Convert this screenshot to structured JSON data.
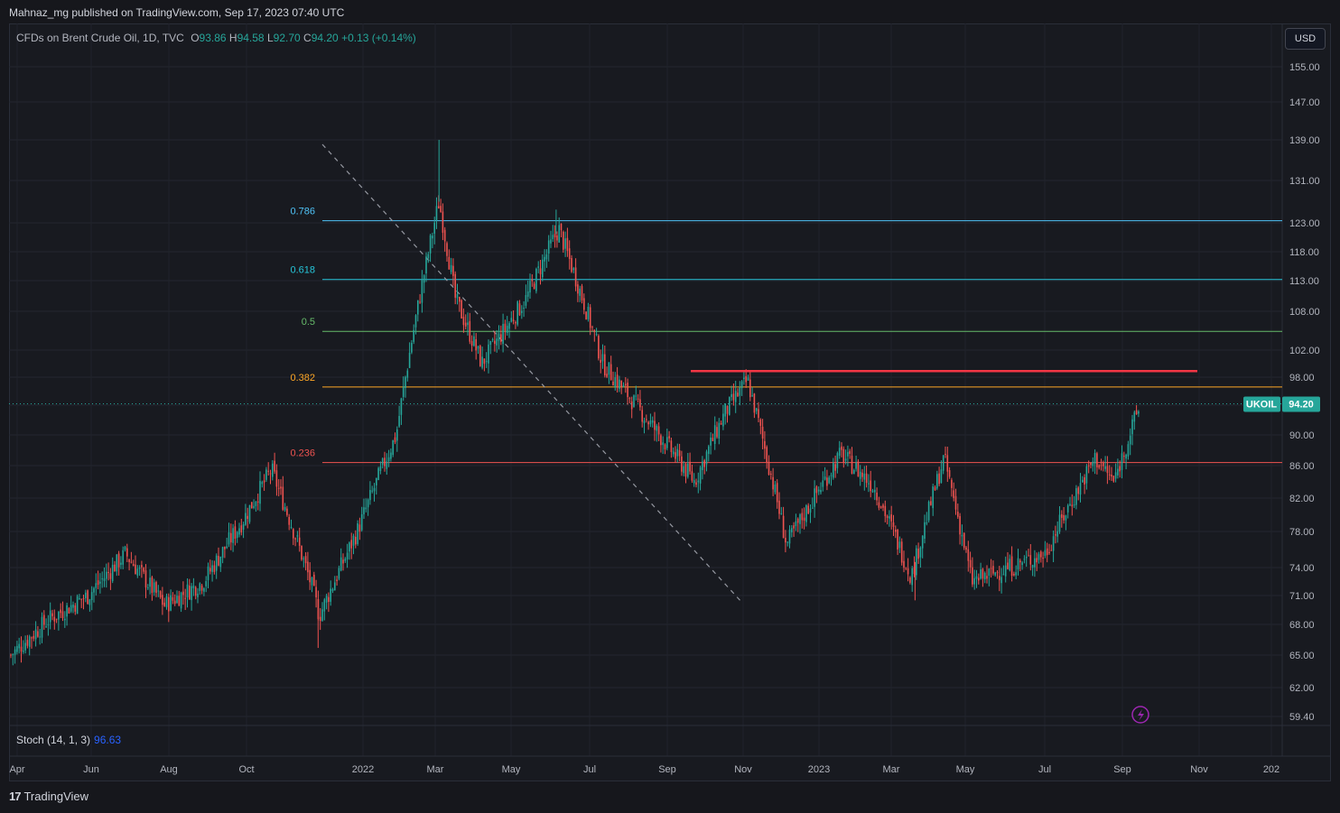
{
  "header": {
    "published_line": "Mahnaz_mg published on TradingView.com, Sep 17, 2023 07:40 UTC"
  },
  "symbol": {
    "name": "CFDs on Brent Crude Oil, 1D, TVC",
    "open_label": "O",
    "open": "93.86",
    "high_label": "H",
    "high": "94.58",
    "low_label": "L",
    "low": "92.70",
    "close_label": "C",
    "close": "94.20",
    "change": "+0.13 (+0.14%)"
  },
  "currency_button": "USD",
  "price_axis": {
    "ticks": [
      "155.00",
      "147.00",
      "139.00",
      "131.00",
      "123.00",
      "118.00",
      "113.00",
      "108.00",
      "102.00",
      "98.00",
      "94.00",
      "90.00",
      "86.00",
      "82.00",
      "78.00",
      "74.00",
      "71.00",
      "68.00",
      "65.00",
      "62.00",
      "59.40"
    ],
    "last_price_symbol": "UKOIL",
    "last_price": "94.20"
  },
  "time_axis": {
    "labels": [
      "Apr",
      "Jun",
      "Aug",
      "Oct",
      "2022",
      "Mar",
      "May",
      "Jul",
      "Sep",
      "Nov",
      "2023",
      "Mar",
      "May",
      "Jul",
      "Sep",
      "Nov",
      "202"
    ]
  },
  "fibonacci": {
    "levels": [
      {
        "label": "0.786",
        "price": 123.4,
        "color": "#4fc3f7"
      },
      {
        "label": "0.618",
        "price": 113.2,
        "color": "#26c6da"
      },
      {
        "label": "0.5",
        "price": 104.9,
        "color": "#66bb6a"
      },
      {
        "label": "0.382",
        "price": 96.6,
        "color": "#ffa726"
      },
      {
        "label": "0.236",
        "price": 86.4,
        "color": "#ef5350"
      }
    ]
  },
  "indicator": {
    "name": "Stoch (14, 1, 3)",
    "value": "96.63"
  },
  "colors": {
    "up": "#26a69a",
    "down": "#ef5350",
    "resistance_line": "#f23645",
    "trendline": "#9598a1"
  },
  "chart_data": {
    "type": "candlestick",
    "title": "CFDs on Brent Crude Oil, 1D, TVC",
    "x_range": [
      "2021-04-01",
      "2024-01-01"
    ],
    "y_range": [
      59.4,
      155
    ],
    "resistance_level": 98.9,
    "last_close": 94.2,
    "close_path": [
      {
        "date": "2021-04-01",
        "close": 65.0
      },
      {
        "date": "2021-05-01",
        "close": 68.5
      },
      {
        "date": "2021-06-01",
        "close": 71.0
      },
      {
        "date": "2021-07-01",
        "close": 75.5
      },
      {
        "date": "2021-08-01",
        "close": 70.0
      },
      {
        "date": "2021-09-01",
        "close": 72.5
      },
      {
        "date": "2021-10-01",
        "close": 79.0
      },
      {
        "date": "2021-10-25",
        "close": 85.5
      },
      {
        "date": "2021-11-26",
        "close": 72.0
      },
      {
        "date": "2021-12-02",
        "close": 68.9
      },
      {
        "date": "2022-01-01",
        "close": 78.0
      },
      {
        "date": "2022-02-01",
        "close": 90.0
      },
      {
        "date": "2022-03-07",
        "close": 127.0
      },
      {
        "date": "2022-03-20",
        "close": 110.0
      },
      {
        "date": "2022-04-10",
        "close": 100.0
      },
      {
        "date": "2022-05-15",
        "close": 110.0
      },
      {
        "date": "2022-06-10",
        "close": 122.0
      },
      {
        "date": "2022-07-15",
        "close": 100.0
      },
      {
        "date": "2022-08-15",
        "close": 93.0
      },
      {
        "date": "2022-09-26",
        "close": 84.0
      },
      {
        "date": "2022-10-20",
        "close": 93.0
      },
      {
        "date": "2022-11-07",
        "close": 97.5
      },
      {
        "date": "2022-12-08",
        "close": 76.5
      },
      {
        "date": "2023-01-20",
        "close": 87.5
      },
      {
        "date": "2023-02-15",
        "close": 83.5
      },
      {
        "date": "2023-03-17",
        "close": 73.0
      },
      {
        "date": "2023-04-12",
        "close": 87.0
      },
      {
        "date": "2023-05-04",
        "close": 72.5
      },
      {
        "date": "2023-06-12",
        "close": 74.5
      },
      {
        "date": "2023-07-01",
        "close": 75.5
      },
      {
        "date": "2023-08-10",
        "close": 87.0
      },
      {
        "date": "2023-08-25",
        "close": 84.0
      },
      {
        "date": "2023-09-15",
        "close": 94.2
      }
    ]
  }
}
